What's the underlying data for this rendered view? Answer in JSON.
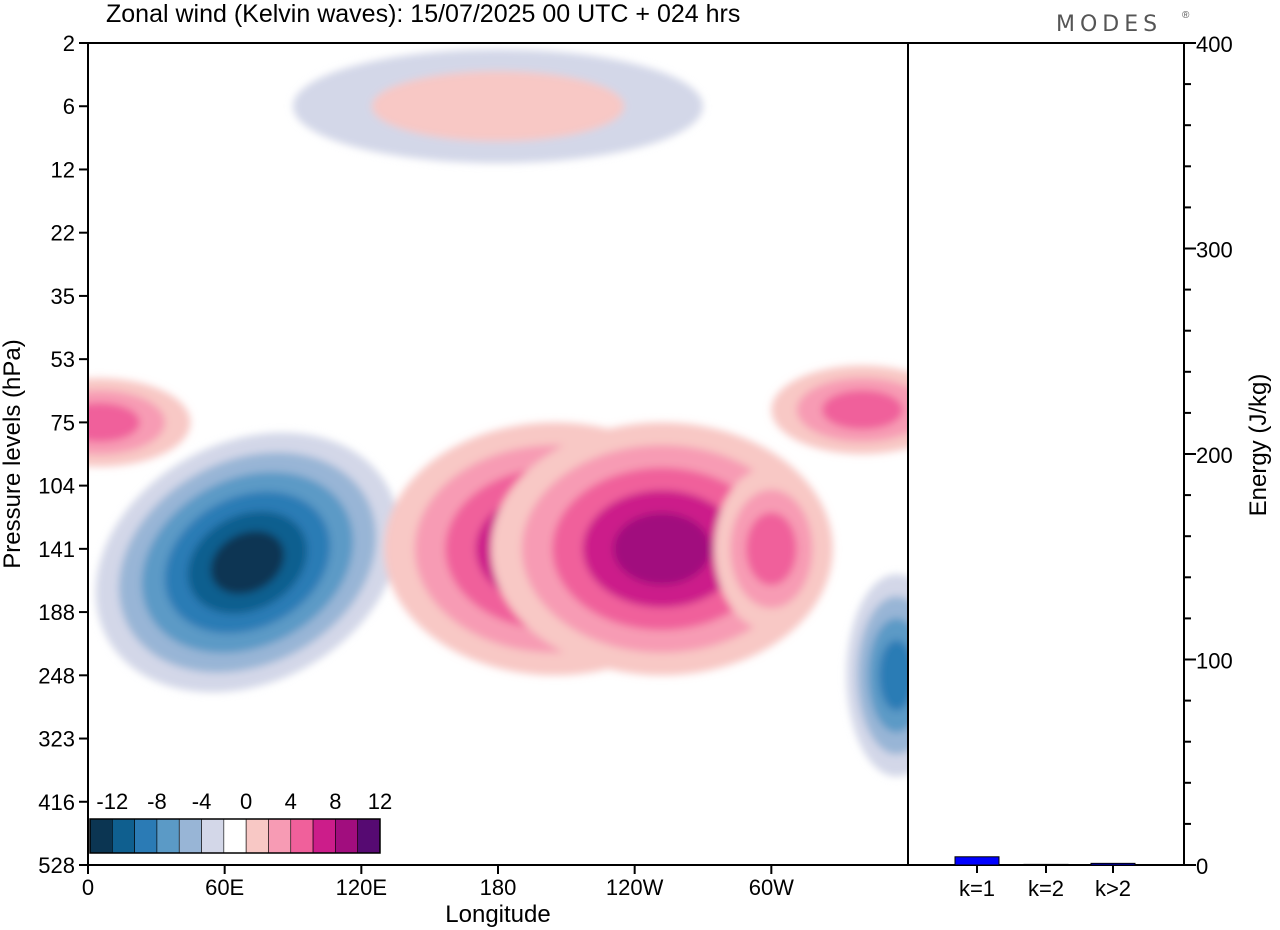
{
  "header": {
    "title": "Zonal wind (Kelvin waves):  15/07/2025  00 UTC  + 024 hrs",
    "brand": "MODES",
    "brand_mark": "®"
  },
  "chart_data": [
    {
      "type": "heatmap",
      "title": "Zonal wind (Kelvin waves):  15/07/2025  00 UTC  + 024 hrs",
      "xlabel": "Longitude",
      "ylabel": "Pressure levels (hPa)",
      "x_ticks": [
        "0",
        "60E",
        "120E",
        "180",
        "120W",
        "60W"
      ],
      "x_range_deg": [
        0,
        360
      ],
      "y_ticks": [
        2,
        6,
        12,
        22,
        35,
        53,
        75,
        104,
        141,
        188,
        248,
        323,
        416,
        528
      ],
      "y_inverted": true,
      "colorbar": {
        "labels": [
          "-12",
          "-8",
          "-4",
          "0",
          "4",
          "8",
          "12"
        ],
        "bins": [
          -14,
          -12,
          -10,
          -8,
          -6,
          -4,
          -2,
          2,
          4,
          6,
          8,
          10,
          12,
          14
        ],
        "colors": [
          "#0b3552",
          "#0f5f8f",
          "#2b7bb5",
          "#5b9ac6",
          "#98b5d6",
          "#d3d7e8",
          "#ffffff",
          "#f8c8c5",
          "#f79bb4",
          "#f0609b",
          "#cc1d8a",
          "#a10d7e",
          "#560a72"
        ],
        "placement": "bottom-left"
      },
      "features": [
        {
          "label": "easterly core",
          "sign": "negative",
          "lon": 70,
          "p": 150,
          "value": -13
        },
        {
          "label": "easterly cell",
          "sign": "negative",
          "lon": 355,
          "p": 248,
          "value": -8
        },
        {
          "label": "westerly core",
          "sign": "positive",
          "lon": 205,
          "p": 141,
          "value": 10
        },
        {
          "label": "westerly core",
          "sign": "positive",
          "lon": 252,
          "p": 141,
          "value": 10
        },
        {
          "label": "westerly cell",
          "sign": "positive",
          "lon": 300,
          "p": 141,
          "value": 6
        },
        {
          "label": "westerly layer",
          "sign": "positive",
          "lon": 5,
          "p": 75,
          "value": 7
        },
        {
          "label": "westerly layer",
          "sign": "positive",
          "lon": 340,
          "p": 70,
          "value": 7
        },
        {
          "label": "upper-level patches",
          "sign": "mixed",
          "lon": 180,
          "p": 6,
          "value": 8
        }
      ]
    },
    {
      "type": "bar",
      "categories": [
        "k=1",
        "k=2",
        "k>2"
      ],
      "values": [
        4,
        0.3,
        0.8
      ],
      "ylabel": "Energy (J/kg)",
      "ylim": [
        0,
        400
      ],
      "y_ticks": [
        0,
        100,
        200,
        300,
        400
      ],
      "colors": [
        "#0000ff",
        "#0000ff",
        "#0000ff"
      ]
    }
  ]
}
